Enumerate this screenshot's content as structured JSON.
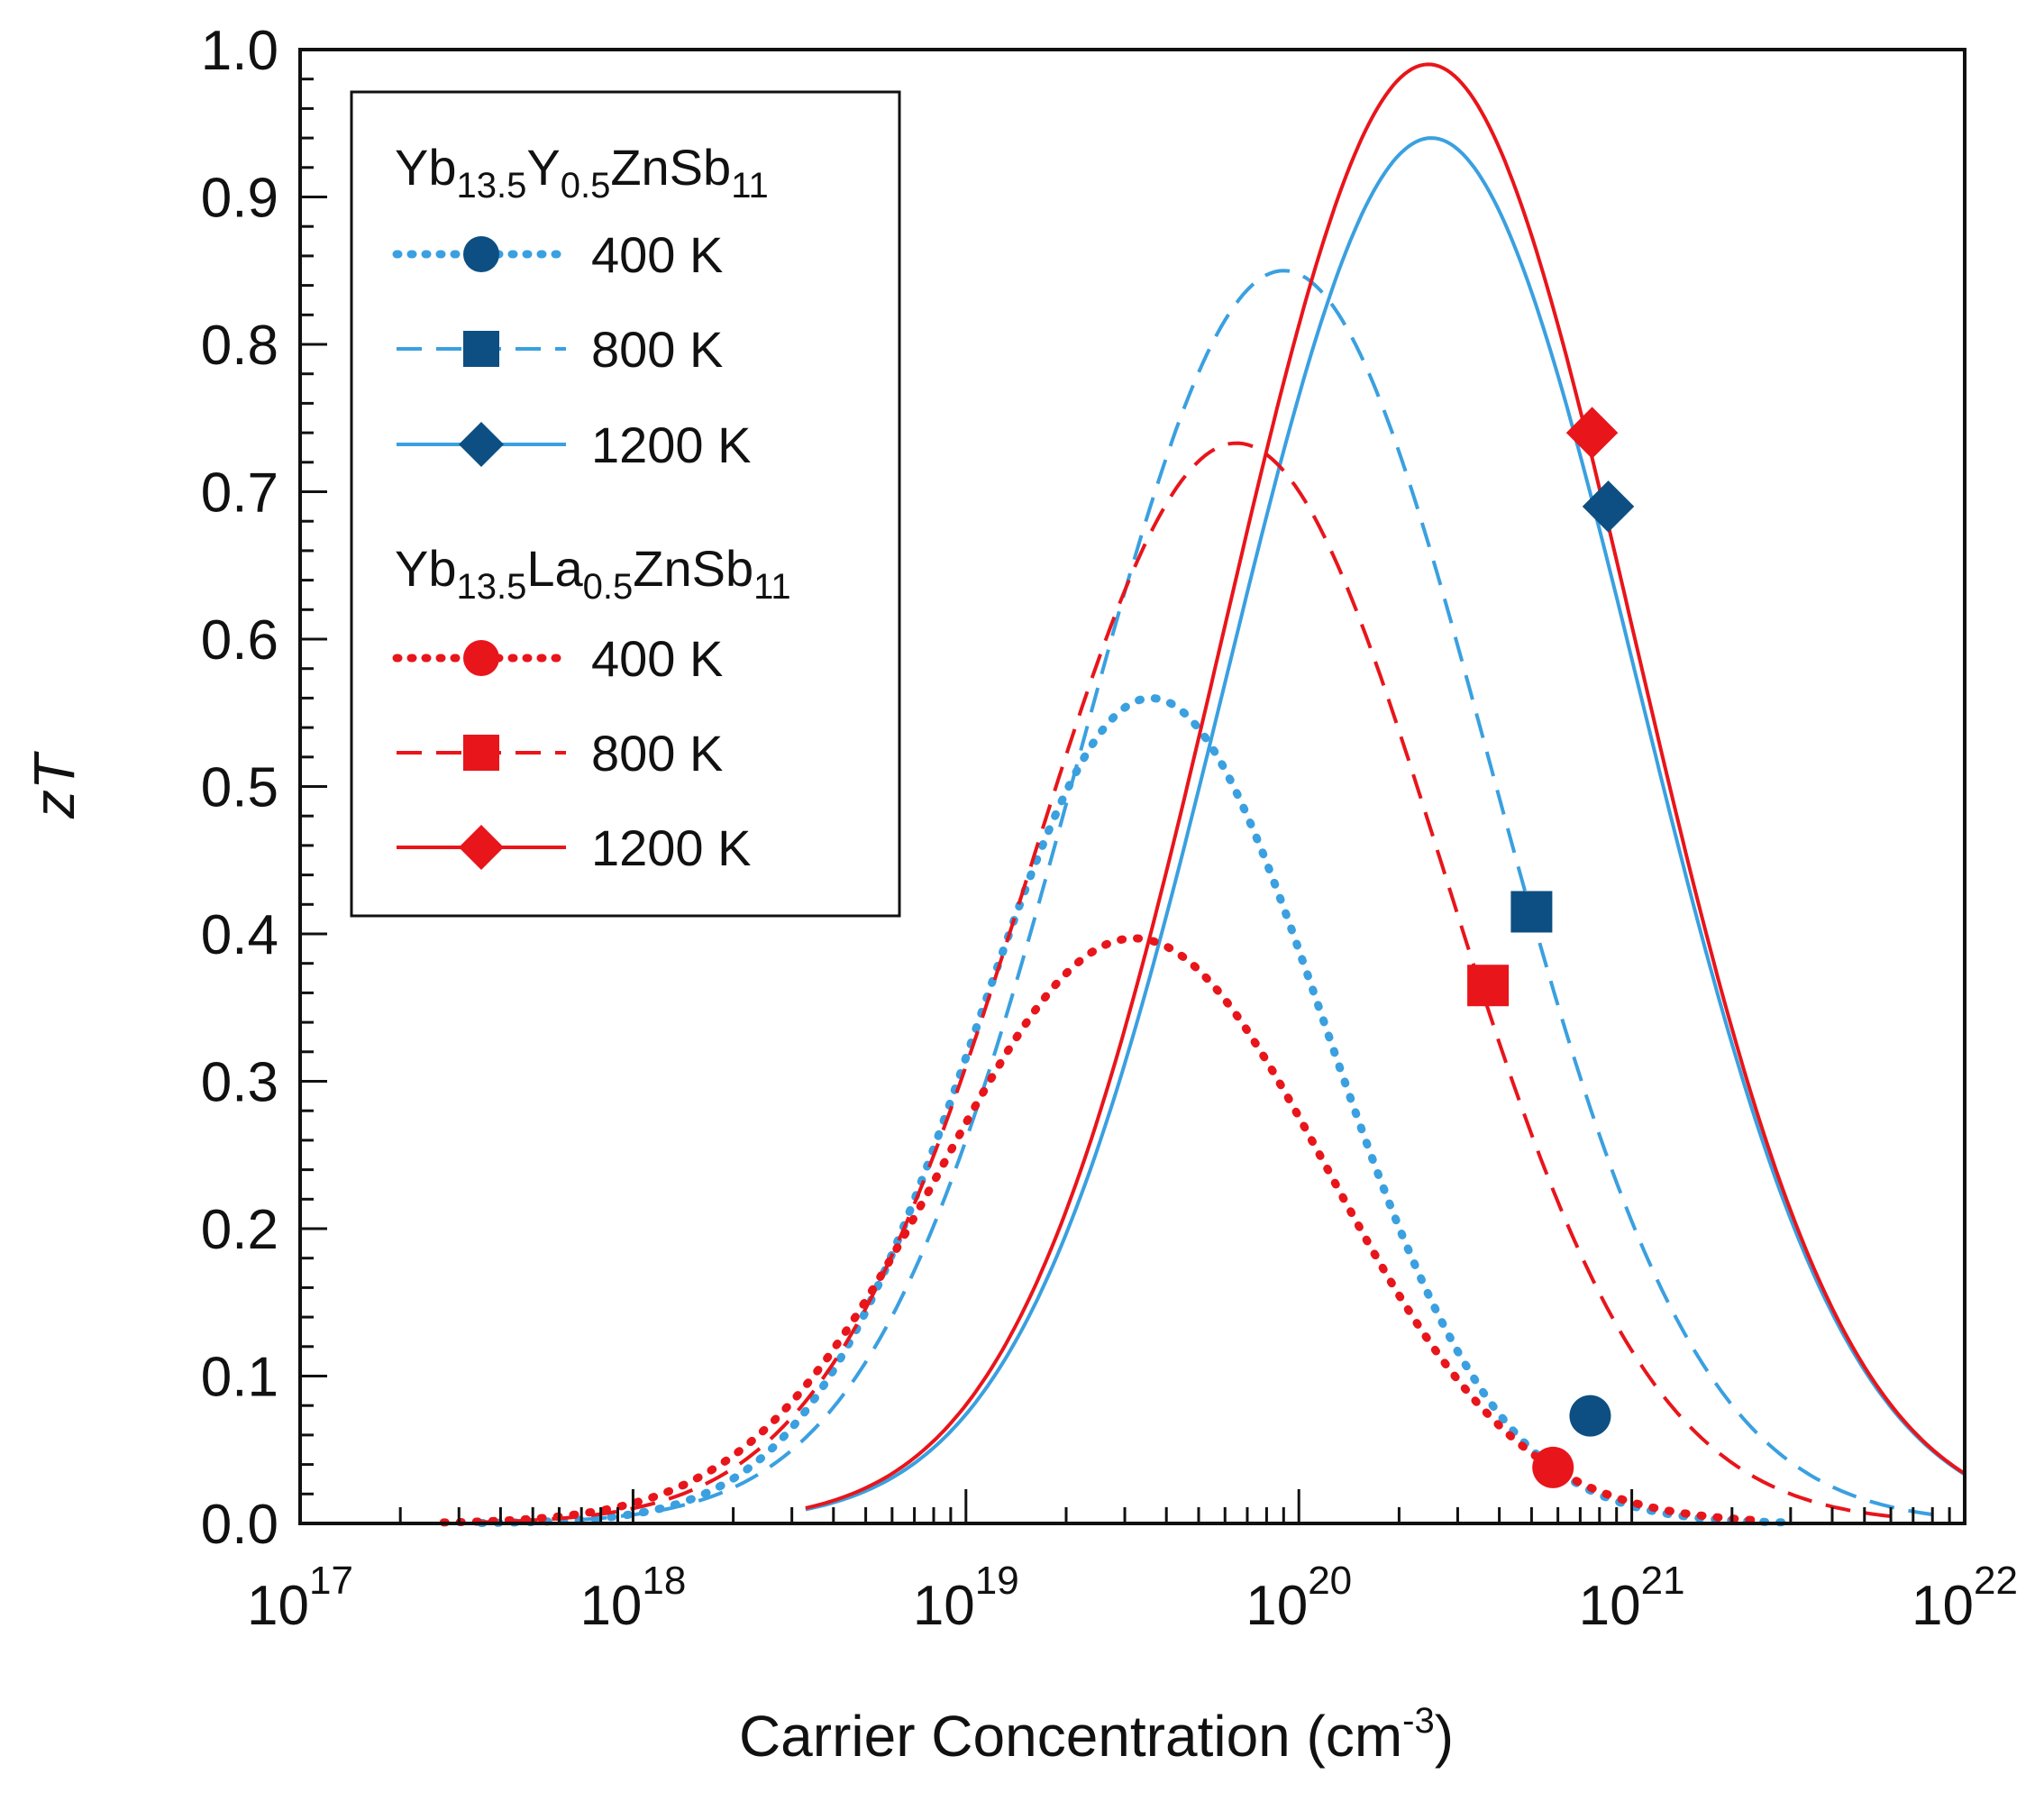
{
  "chart_data": {
    "type": "line",
    "xlabel": "Carrier Concentration (cm",
    "xlabel_sup": "-3",
    "xlabel_end": ")",
    "ylabel": "zT",
    "x_scale": "log",
    "xlim": [
      1e+17,
      1e+22
    ],
    "ylim": [
      0.0,
      1.0
    ],
    "x_ticks": [
      {
        "value": 1e+17,
        "base": "10",
        "exp": "17"
      },
      {
        "value": 1e+18,
        "base": "10",
        "exp": "18"
      },
      {
        "value": 1e+19,
        "base": "10",
        "exp": "19"
      },
      {
        "value": 1e+20,
        "base": "10",
        "exp": "20"
      },
      {
        "value": 1e+21,
        "base": "10",
        "exp": "21"
      },
      {
        "value": 1e+22,
        "base": "10",
        "exp": "22"
      }
    ],
    "y_ticks": [
      {
        "value": 0.0,
        "label": "0.0"
      },
      {
        "value": 0.1,
        "label": "0.1"
      },
      {
        "value": 0.2,
        "label": "0.2"
      },
      {
        "value": 0.3,
        "label": "0.3"
      },
      {
        "value": 0.4,
        "label": "0.4"
      },
      {
        "value": 0.5,
        "label": "0.5"
      },
      {
        "value": 0.6,
        "label": "0.6"
      },
      {
        "value": 0.7,
        "label": "0.7"
      },
      {
        "value": 0.8,
        "label": "0.8"
      },
      {
        "value": 0.9,
        "label": "0.9"
      },
      {
        "value": 1.0,
        "label": "1.0"
      }
    ],
    "grid": false,
    "legend_position": "top-left",
    "legend_groups": [
      {
        "title": {
          "base": "Yb",
          "parts": [
            [
              "13.5",
              "sub"
            ],
            [
              "Y",
              "normal"
            ],
            [
              "0.5",
              "sub"
            ],
            [
              "ZnSb",
              "normal"
            ],
            [
              "11",
              "sub"
            ]
          ]
        },
        "color": "#3aa0e0",
        "marker_color": "#0d4f82"
      },
      {
        "title": {
          "base": "Yb",
          "parts": [
            [
              "13.5",
              "sub"
            ],
            [
              "La",
              "normal"
            ],
            [
              "0.5",
              "sub"
            ],
            [
              "ZnSb",
              "normal"
            ],
            [
              "11",
              "sub"
            ]
          ]
        },
        "color": "#e8151b",
        "marker_color": "#e8151b"
      }
    ],
    "series": [
      {
        "name": "400 K",
        "group": 0,
        "style": "dotted",
        "marker": "circle",
        "color": "#3aa0e0",
        "peak_x": 3.6e+19,
        "peak_y": 0.56,
        "sigma": 0.52,
        "x_start": 3.5e+17,
        "x_end": 3e+21,
        "point": {
          "x": 7.5e+20,
          "y": 0.073
        }
      },
      {
        "name": "800 K",
        "group": 0,
        "style": "dashed",
        "marker": "square",
        "color": "#3aa0e0",
        "peak_x": 9e+19,
        "peak_y": 0.85,
        "sigma": 0.62,
        "x_start": 7e+17,
        "x_end": 8e+21,
        "point": {
          "x": 5e+20,
          "y": 0.415
        }
      },
      {
        "name": "1200 K",
        "group": 0,
        "style": "solid",
        "marker": "diamond",
        "color": "#3aa0e0",
        "peak_x": 2.5e+20,
        "peak_y": 0.94,
        "sigma": 0.62,
        "x_start": 3.3e+18,
        "x_end": 1e+22,
        "point": {
          "x": 8.5e+20,
          "y": 0.69
        }
      },
      {
        "name": "400 K",
        "group": 1,
        "style": "dotted",
        "marker": "circle",
        "color": "#e8151b",
        "peak_x": 3.2e+19,
        "peak_y": 0.397,
        "sigma": 0.58,
        "x_start": 2.7e+17,
        "x_end": 2.5e+21,
        "point": {
          "x": 5.8e+20,
          "y": 0.038
        }
      },
      {
        "name": "800 K",
        "group": 1,
        "style": "dashed",
        "marker": "square",
        "color": "#e8151b",
        "peak_x": 6.5e+19,
        "peak_y": 0.733,
        "sigma": 0.62,
        "x_start": 3.3e+17,
        "x_end": 6e+21,
        "point": {
          "x": 3.7e+20,
          "y": 0.365
        }
      },
      {
        "name": "1200 K",
        "group": 1,
        "style": "solid",
        "marker": "diamond",
        "color": "#e8151b",
        "peak_x": 2.45e+20,
        "peak_y": 0.99,
        "sigma": 0.62,
        "x_start": 3.3e+18,
        "x_end": 1e+22,
        "point": {
          "x": 7.6e+20,
          "y": 0.74
        }
      }
    ]
  }
}
